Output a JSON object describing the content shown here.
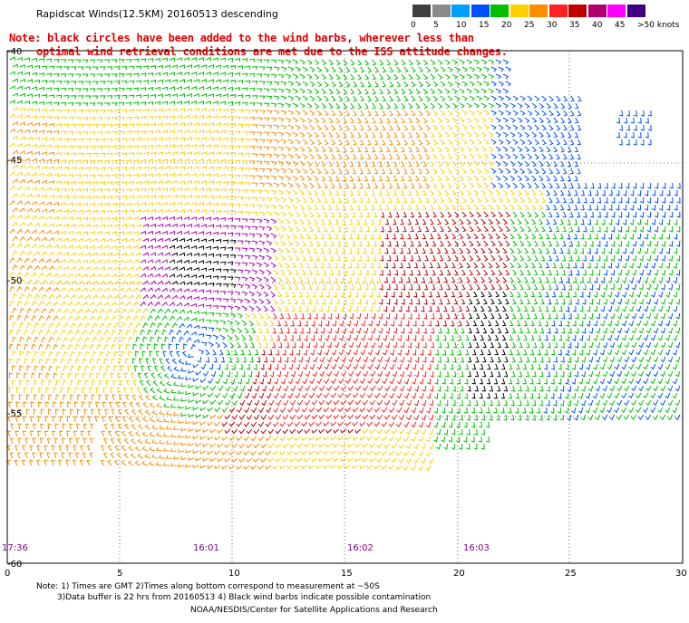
{
  "title": "Rapidscat Winds(12.5KM) 20160513 descending",
  "note_line1": "Note: black circles have been added to the wind barbs, wherever less than",
  "note_line2": "optimal wind retrieval conditions are met due to the ISS attitude changes.",
  "legend": {
    "unit": ">50 knots",
    "ticks": [
      "0",
      "5",
      "10",
      "15",
      "20",
      "25",
      "30",
      "35",
      "40",
      "45"
    ],
    "colors": [
      "#404040",
      "#8a8a8a",
      "#00a0ff",
      "#0050ff",
      "#00c000",
      "#ffd000",
      "#ff8c00",
      "#ff2020",
      "#c00000",
      "#b00070",
      "#ff00ff",
      "#400080"
    ]
  },
  "axes": {
    "x_ticks": [
      "0",
      "5",
      "10",
      "15",
      "20",
      "25",
      "30"
    ],
    "y_labels": [
      "-40",
      "-45",
      "-50",
      "-55",
      "-60"
    ]
  },
  "time_labels": [
    "17:36",
    "16:01",
    "16:02",
    "16:03"
  ],
  "footer": {
    "line1": "Note: 1) Times are GMT 2)Times along bottom correspond to measurement at ~50S",
    "line2": "3)Data buffer is 22 hrs from 20160513 4) Black wind barbs indicate possible contamination",
    "line3": "NOAA/NESDIS/Center for Satellite Applications and Research"
  },
  "wind_colors": {
    "calm": "#0050ff",
    "light": "#00c000",
    "moderate": "#ffd000",
    "fresh": "#ff8c00",
    "strong": "#ff2020",
    "gale": "#c00000",
    "storm": "#b000b0",
    "flagged": "#000000"
  }
}
